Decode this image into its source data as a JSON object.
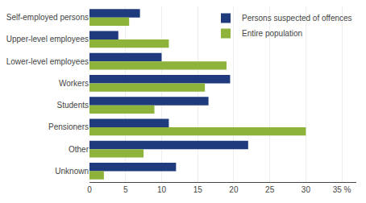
{
  "chart_data": {
    "type": "bar",
    "orientation": "horizontal",
    "categories": [
      "Self-employed persons",
      "Upper-level employees",
      "Lower-level employees",
      "Workers",
      "Students",
      "Pensioners",
      "Other",
      "Unknown"
    ],
    "series": [
      {
        "name": "Persons suspected of offences",
        "color": "#1F3A7D",
        "values": [
          7,
          4,
          10,
          19.5,
          16.5,
          11,
          22,
          12
        ]
      },
      {
        "name": "Entire population",
        "color": "#8DB33A",
        "values": [
          5.5,
          11,
          19,
          16,
          9,
          30,
          7.5,
          2
        ]
      }
    ],
    "xlim": [
      0,
      37
    ],
    "xticks": [
      0,
      5,
      10,
      15,
      20,
      25,
      30,
      {
        "value": 35,
        "label": "35 %"
      }
    ],
    "grid": true,
    "legend": "upper right"
  }
}
